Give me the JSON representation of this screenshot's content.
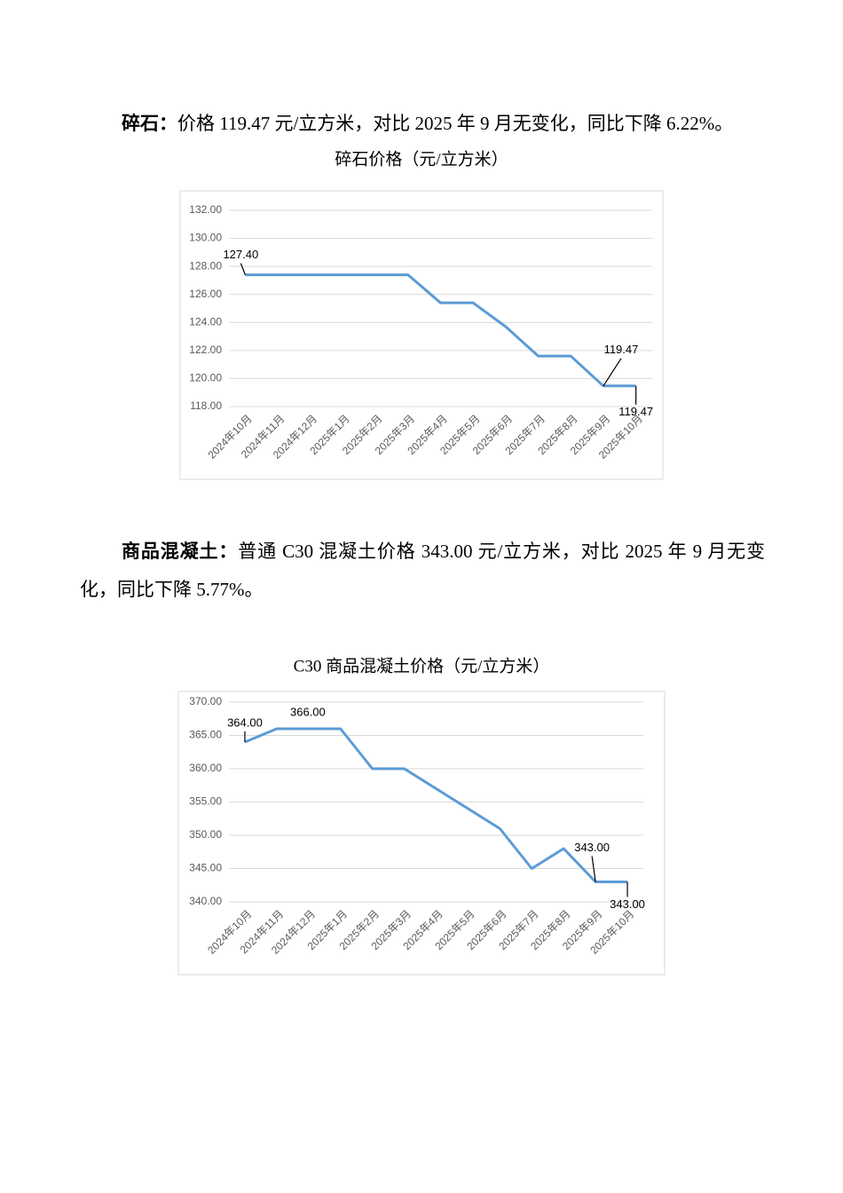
{
  "paragraphs": [
    {
      "lead": "碎石：",
      "text": "价格 119.47 元/立方米，对比 2025 年 9 月无变化，同比下降 6.22%。"
    },
    {
      "lead": "商品混凝土：",
      "text": "普通 C30 混凝土价格 343.00 元/立方米，对比 2025 年 9 月无变化，同比下降 5.77%。"
    }
  ],
  "chart_data": [
    {
      "type": "line",
      "title": "碎石价格（元/立方米）",
      "categories": [
        "2024年10月",
        "2024年11月",
        "2024年12月",
        "2025年1月",
        "2025年2月",
        "2025年3月",
        "2025年4月",
        "2025年5月",
        "2025年6月",
        "2025年7月",
        "2025年8月",
        "2025年9月",
        "2025年10月"
      ],
      "values": [
        127.4,
        127.4,
        127.4,
        127.4,
        127.4,
        127.4,
        125.4,
        125.4,
        123.7,
        121.6,
        121.6,
        119.47,
        119.47
      ],
      "value_labels": [
        "127.40",
        null,
        null,
        null,
        null,
        null,
        null,
        null,
        null,
        null,
        null,
        "119.47",
        "119.47"
      ],
      "color": "#5b9bd5",
      "ylim": [
        118,
        132
      ],
      "yticks": [
        {
          "value": 118,
          "label": "118.00"
        },
        {
          "value": 120,
          "label": "120.00"
        },
        {
          "value": 122,
          "label": "122.00"
        },
        {
          "value": 124,
          "label": "124.00"
        },
        {
          "value": 126,
          "label": "126.00"
        },
        {
          "value": 128,
          "label": "128.00"
        },
        {
          "value": 130,
          "label": "130.00"
        },
        {
          "value": 132,
          "label": "132.00"
        }
      ],
      "grid": true
    },
    {
      "type": "line",
      "title": "C30 商品混凝土价格（元/立方米）",
      "categories": [
        "2024年10月",
        "2024年11月",
        "2024年12月",
        "2025年1月",
        "2025年2月",
        "2025年3月",
        "2025年4月",
        "2025年5月",
        "2025年6月",
        "2025年7月",
        "2025年8月",
        "2025年9月",
        "2025年10月"
      ],
      "values": [
        364,
        366,
        366,
        366,
        360,
        360,
        357,
        354,
        351,
        345,
        348,
        343,
        343
      ],
      "value_labels": [
        "364.00",
        "366.00",
        null,
        null,
        null,
        null,
        null,
        null,
        null,
        null,
        null,
        "343.00",
        "343.00"
      ],
      "color": "#5b9bd5",
      "ylim": [
        340,
        370
      ],
      "yticks": [
        {
          "value": 340,
          "label": "340.00"
        },
        {
          "value": 345,
          "label": "345.00"
        },
        {
          "value": 350,
          "label": "350.00"
        },
        {
          "value": 355,
          "label": "355.00"
        },
        {
          "value": 360,
          "label": "360.00"
        },
        {
          "value": 365,
          "label": "365.00"
        },
        {
          "value": 370,
          "label": "370.00"
        }
      ],
      "grid": true
    }
  ]
}
